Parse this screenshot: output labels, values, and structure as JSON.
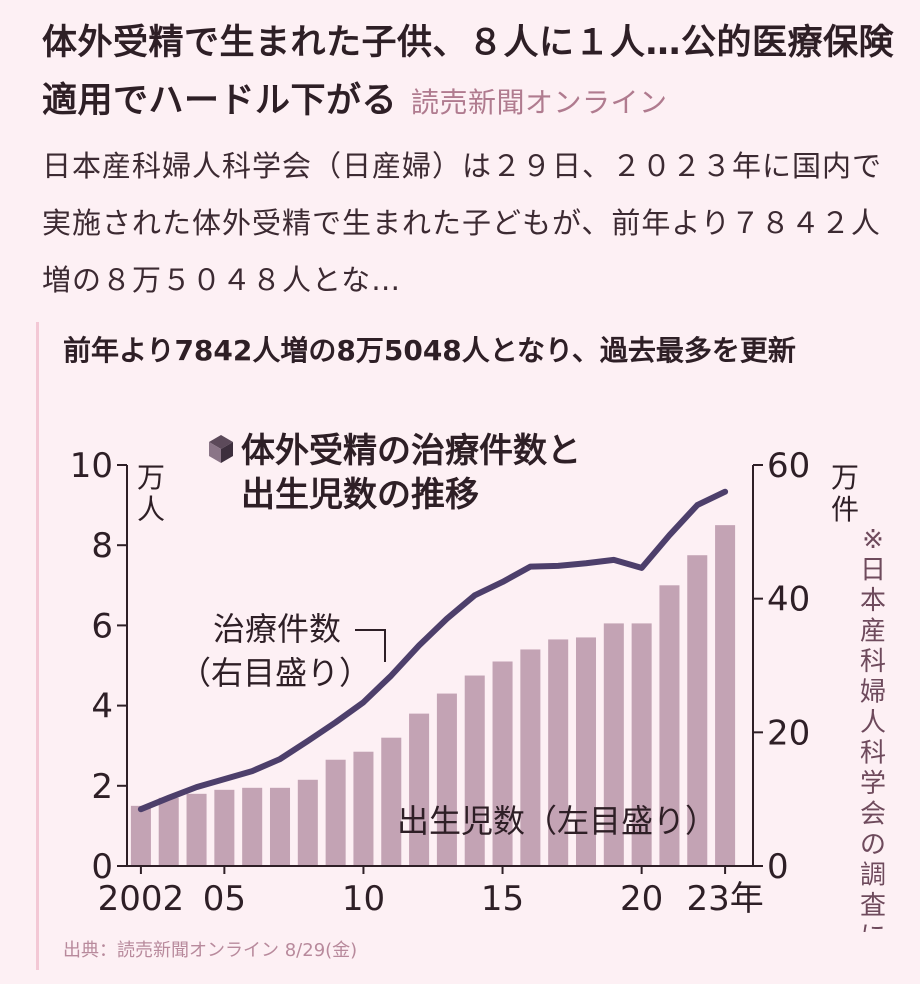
{
  "article": {
    "title": "体外受精で生まれた子供、８人に１人…公的医療保険適用でハードル下がる",
    "source": "読売新聞オンライン",
    "lead": "日本産科婦人科学会（日産婦）は２９日、２０２３年に国内で実施された体外受精で生まれた子どもが、前年より７８４２人増の８万５０４８人とな…"
  },
  "chart_heading": "前年より7842人増の8万5048人となり、過去最多を更新",
  "credit": "出典：読売新聞オンライン 8/29(金)",
  "colors": {
    "bar": "#c3a3b4",
    "line": "#4d3f6b",
    "text": "#2e1f26",
    "source_pink": "#b07b8f"
  },
  "chart_data": {
    "type": "bar+line",
    "title_lines": [
      "体外受精の治療件数と",
      "出生児数の推移"
    ],
    "title_icon": "cube-icon",
    "x": [
      2002,
      2003,
      2004,
      2005,
      2006,
      2007,
      2008,
      2009,
      2010,
      2011,
      2012,
      2013,
      2014,
      2015,
      2016,
      2017,
      2018,
      2019,
      2020,
      2021,
      2022,
      2023
    ],
    "x_tick_labels": [
      {
        "x": 2002,
        "label": "2002"
      },
      {
        "x": 2005,
        "label": "05"
      },
      {
        "x": 2010,
        "label": "10"
      },
      {
        "x": 2015,
        "label": "15"
      },
      {
        "x": 2020,
        "label": "20"
      },
      {
        "x": 2023,
        "label": "23年"
      }
    ],
    "left_axis": {
      "label": "（万人）",
      "min": 0,
      "max": 10,
      "ticks": [
        0,
        2,
        4,
        6,
        8,
        10
      ]
    },
    "right_axis": {
      "label": "（万件）",
      "min": 0,
      "max": 60,
      "ticks": [
        0,
        20,
        40,
        60
      ]
    },
    "series": [
      {
        "name": "出生児数（左目盛り）",
        "type": "bar",
        "axis": "left",
        "values": [
          1.5,
          1.7,
          1.8,
          1.9,
          1.95,
          1.95,
          2.15,
          2.65,
          2.85,
          3.2,
          3.8,
          4.3,
          4.75,
          5.1,
          5.4,
          5.65,
          5.7,
          6.05,
          6.05,
          7.0,
          7.75,
          8.5
        ]
      },
      {
        "name": "治療件数（右目盛り）",
        "type": "line",
        "axis": "right",
        "values": [
          8.5,
          10.2,
          11.8,
          13.0,
          14.2,
          16.0,
          18.7,
          21.5,
          24.5,
          28.5,
          33.0,
          37.0,
          40.5,
          42.5,
          44.8,
          44.9,
          45.3,
          45.8,
          44.6,
          49.5,
          54.0,
          56.0
        ]
      }
    ],
    "note": "※日本産科婦人科学会の調査による"
  }
}
